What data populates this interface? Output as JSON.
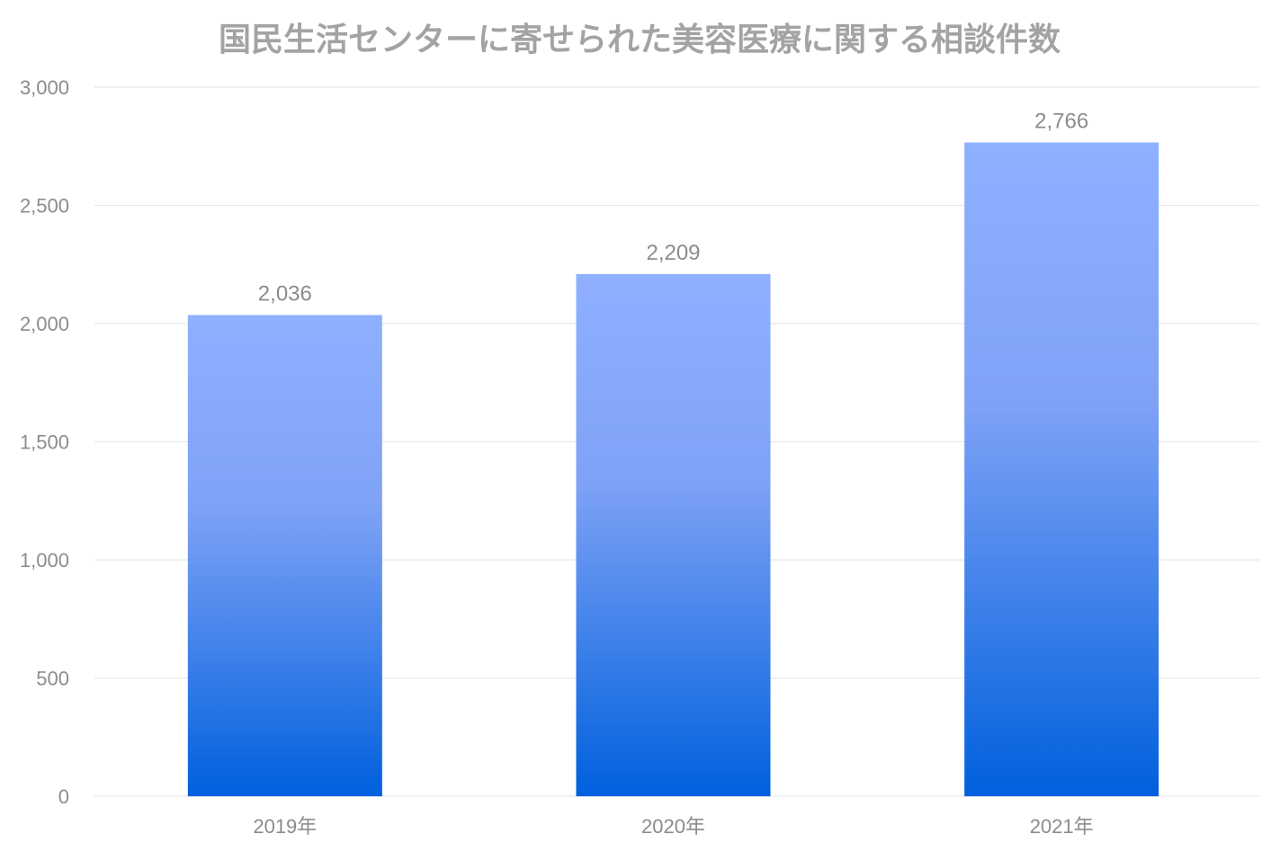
{
  "chart_data": {
    "type": "bar",
    "title": "国民生活センターに寄せられた美容医療に関する相談件数",
    "categories": [
      "2019年",
      "2020年",
      "2021年"
    ],
    "values": [
      2036,
      2209,
      2766
    ],
    "data_labels": [
      "2,036",
      "2,209",
      "2,766"
    ],
    "ylim": [
      0,
      3000
    ],
    "yticks": [
      0,
      500,
      1000,
      1500,
      2000,
      2500,
      3000
    ],
    "ytick_labels": [
      "0",
      "500",
      "1,000",
      "1,500",
      "2,000",
      "2,500",
      "3,000"
    ],
    "xlabel": "",
    "ylabel": "",
    "grid": "horizontal",
    "legend": "none",
    "colors": {
      "bar_top": "#8fb0ff",
      "bar_bottom": "#0060dd",
      "title": "#a3a3a3",
      "text": "#8c8c8c",
      "grid": "#e8e8e8"
    }
  }
}
